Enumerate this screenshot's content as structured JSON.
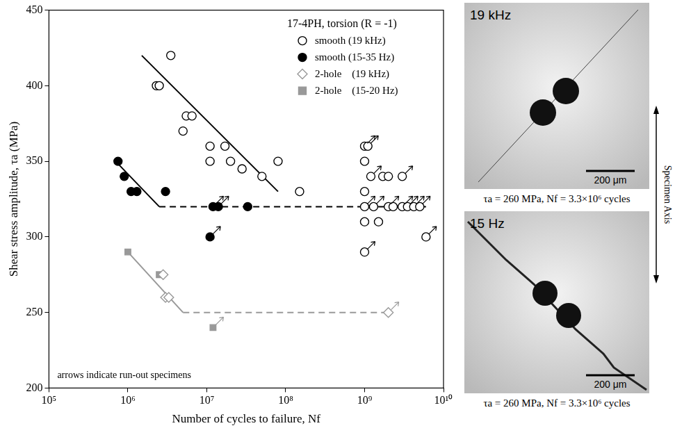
{
  "chart_data": {
    "type": "scatter",
    "title": "17-4PH, torsion (R = -1)",
    "annotation": "arrows indicate run-out specimens",
    "x_label": "Number of cycles to failure, Nf",
    "y_label": "Shear stress amplitude, τa (MPa)",
    "log": "x",
    "grid": false,
    "legend": "top-right",
    "xlim": [
      100000,
      10000000000
    ],
    "xticks": [
      {
        "value": 100000,
        "label": "10⁵"
      },
      {
        "value": 1000000,
        "label": "10⁶"
      },
      {
        "value": 10000000,
        "label": "10⁷"
      },
      {
        "value": 100000000,
        "label": "10⁸"
      },
      {
        "value": 1000000000,
        "label": "10⁹"
      },
      {
        "value": 10000000000,
        "label": "10¹⁰"
      }
    ],
    "ylim": [
      200,
      450
    ],
    "yticks": [
      200,
      250,
      300,
      350,
      400,
      450
    ],
    "series": [
      {
        "name": "smooth (19 kHz)",
        "color": "#000000",
        "marker": "circle-open",
        "x": [
          3500000,
          2300000,
          2500000,
          5500000,
          6500000,
          5000000,
          11000000,
          17000000,
          11000000,
          20000000,
          80000000,
          28000000,
          50000000,
          150000000,
          1000000000,
          1100000000,
          1000000000,
          1200000000,
          1000000000,
          1000000000,
          1000000000,
          1000000000,
          1300000000,
          1500000000,
          1700000000,
          2000000000,
          2000000000,
          2300000000,
          3000000000,
          3000000000,
          3500000000,
          4200000000,
          5000000000,
          6000000000
        ],
        "values": [
          420,
          400,
          400,
          380,
          380,
          370,
          360,
          360,
          350,
          350,
          350,
          345,
          340,
          330,
          360,
          360,
          350,
          340,
          330,
          320,
          310,
          290,
          320,
          310,
          340,
          340,
          320,
          320,
          340,
          320,
          320,
          320,
          320,
          300
        ],
        "runout": [
          false,
          false,
          false,
          false,
          false,
          false,
          false,
          false,
          false,
          false,
          false,
          false,
          false,
          false,
          true,
          true,
          false,
          true,
          false,
          true,
          false,
          true,
          true,
          false,
          false,
          false,
          true,
          false,
          true,
          true,
          true,
          true,
          true,
          true
        ]
      },
      {
        "name": "smooth (15-35 Hz)",
        "color": "#000000",
        "marker": "circle",
        "x": [
          750000,
          900000,
          1100000,
          1300000,
          3000000,
          12000000,
          14000000,
          33000000,
          11000000
        ],
        "values": [
          350,
          340,
          330,
          330,
          330,
          320,
          320,
          320,
          300
        ],
        "runout": [
          false,
          false,
          false,
          false,
          false,
          true,
          true,
          false,
          true
        ]
      },
      {
        "name": "2-hole    (19 kHz)",
        "color": "#999999",
        "marker": "diamond-open",
        "x": [
          2800000,
          3000000,
          3300000,
          2000000000
        ],
        "values": [
          275,
          260,
          260,
          250
        ],
        "runout": [
          false,
          false,
          false,
          true
        ]
      },
      {
        "name": "2-hole    (15-20 Hz)",
        "color": "#999999",
        "marker": "square",
        "x": [
          1000000,
          2500000,
          12000000
        ],
        "values": [
          290,
          275,
          240
        ],
        "runout": [
          false,
          false,
          true
        ]
      }
    ],
    "fit_lines": [
      {
        "color": "#000000",
        "line_style": "solid",
        "x": [
          1500000,
          80000000
        ],
        "values": [
          420,
          330
        ]
      },
      {
        "color": "#000000",
        "line_style": "solid",
        "x": [
          700000,
          2500000
        ],
        "values": [
          350,
          320
        ]
      },
      {
        "color": "#000000",
        "line_style": "dashed",
        "x": [
          2500000,
          6000000000
        ],
        "values": [
          320,
          320
        ]
      },
      {
        "color": "#999999",
        "line_style": "solid",
        "x": [
          1000000,
          5000000
        ],
        "values": [
          290,
          250
        ]
      },
      {
        "color": "#999999",
        "line_style": "dashed",
        "x": [
          5000000,
          2000000000
        ],
        "values": [
          250,
          250
        ]
      }
    ]
  },
  "micrographs": [
    {
      "title": "19 kHz",
      "scale_bar": "200 μm",
      "caption": "τa = 260 MPa, Nf = 3.3×10⁶ cycles"
    },
    {
      "title": "15 Hz",
      "scale_bar": "200 μm",
      "caption": "τa = 260 MPa, Nf = 3.3×10⁶ cycles"
    }
  ],
  "side_label": "Specimen Axis"
}
